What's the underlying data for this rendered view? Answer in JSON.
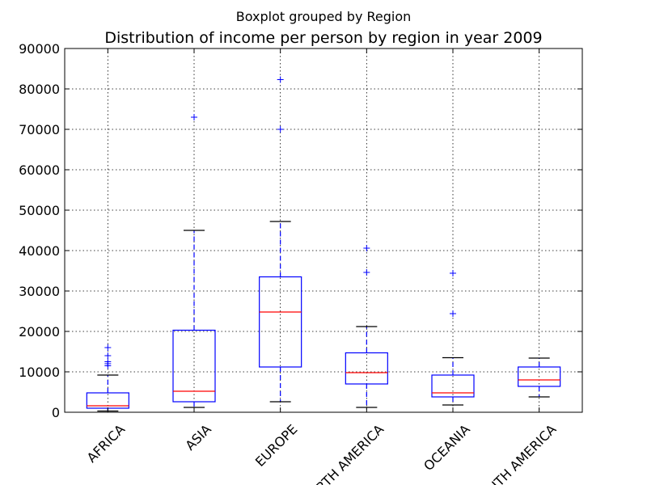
{
  "chart_data": {
    "type": "boxplot",
    "suptitle": "Boxplot grouped by Region",
    "title": "Distribution of income per person by region in year 2009",
    "xlabel": "",
    "ylabel": "",
    "ylim": [
      0,
      90000
    ],
    "yticks": [
      0,
      10000,
      20000,
      30000,
      40000,
      50000,
      60000,
      70000,
      80000,
      90000
    ],
    "ytick_labels": [
      "0",
      "10000",
      "20000",
      "30000",
      "40000",
      "50000",
      "60000",
      "70000",
      "80000",
      "90000"
    ],
    "grid": true,
    "colors": {
      "box": "#0000ff",
      "median": "#ff0000",
      "cap": "#000000"
    },
    "categories": [
      "AFRICA",
      "ASIA",
      "EUROPE",
      "NORTH AMERICA",
      "OCEANIA",
      "SOUTH AMERICA"
    ],
    "boxes": [
      {
        "name": "AFRICA",
        "whisker_low": 300,
        "q1": 1000,
        "median": 1600,
        "q3": 4800,
        "whisker_high": 9200,
        "fliers": [
          11500,
          12000,
          12500,
          14000,
          16000
        ]
      },
      {
        "name": "ASIA",
        "whisker_low": 1200,
        "q1": 2600,
        "median": 5200,
        "q3": 20300,
        "whisker_high": 45000,
        "fliers": [
          73000
        ]
      },
      {
        "name": "EUROPE",
        "whisker_low": 2600,
        "q1": 11200,
        "median": 24800,
        "q3": 33500,
        "whisker_high": 47200,
        "fliers": [
          70000,
          82300
        ]
      },
      {
        "name": "NORTH AMERICA",
        "whisker_low": 1200,
        "q1": 7000,
        "median": 9800,
        "q3": 14700,
        "whisker_high": 21200,
        "fliers": [
          34600,
          40600
        ]
      },
      {
        "name": "OCEANIA",
        "whisker_low": 1800,
        "q1": 3800,
        "median": 4800,
        "q3": 9200,
        "whisker_high": 13500,
        "fliers": [
          24400,
          34400
        ]
      },
      {
        "name": "SOUTH AMERICA",
        "whisker_low": 3800,
        "q1": 6400,
        "median": 8000,
        "q3": 11200,
        "whisker_high": 13400,
        "fliers": []
      }
    ]
  }
}
